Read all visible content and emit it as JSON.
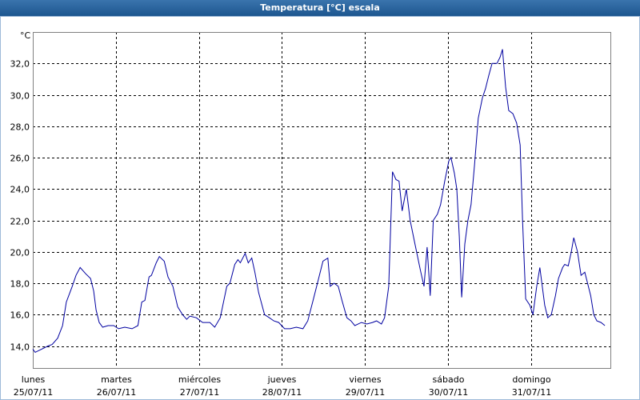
{
  "chart_data": {
    "type": "line",
    "title": "Temperatura [°C] escala",
    "y_unit": "°C",
    "x": [
      0,
      0.7,
      4.4,
      5.6,
      7.2,
      8.6,
      9.7,
      11.4,
      12.5,
      13.7,
      15.3,
      16.7,
      17.6,
      18.3,
      19.2,
      20.2,
      21.8,
      23.4,
      24.8,
      26.6,
      28.7,
      30.4,
      31.5,
      32.4,
      33.6,
      34.3,
      35.7,
      36.6,
      38.0,
      39.1,
      40.5,
      41.9,
      43.3,
      44.5,
      45.4,
      47.3,
      49.1,
      51.2,
      52.6,
      54.2,
      56.1,
      57.0,
      58.4,
      59.3,
      60.0,
      61.4,
      62.3,
      63.3,
      64.2,
      65.3,
      67.0,
      68.4,
      69.7,
      71.1,
      72.8,
      74.4,
      76.2,
      78.1,
      79.5,
      80.9,
      82.3,
      83.9,
      85.3,
      86.0,
      87.1,
      88.3,
      89.4,
      90.8,
      92.0,
      93.1,
      95.0,
      96.6,
      98.2,
      99.4,
      100.8,
      101.7,
      102.9,
      104.0,
      105.0,
      105.9,
      106.8,
      108.0,
      109.1,
      110.5,
      112.1,
      113.1,
      114.0,
      114.9,
      115.8,
      117.0,
      117.9,
      119.1,
      120.3,
      120.9,
      121.9,
      122.6,
      123.3,
      124.0,
      124.9,
      125.8,
      126.7,
      127.7,
      128.8,
      130.0,
      130.9,
      131.8,
      132.8,
      134.2,
      135.1,
      135.8,
      136.7,
      137.6,
      138.8,
      139.9,
      140.9,
      141.6,
      142.5,
      143.7,
      144.6,
      145.7,
      146.6,
      148.0,
      148.9,
      149.9,
      151.1,
      152.0,
      153.2,
      153.8,
      154.8,
      155.7,
      156.4,
      157.5,
      158.5,
      159.6,
      161.3,
      162.2,
      163.1,
      164.3,
      165.4
    ],
    "series": [
      {
        "name": "Temperatura",
        "color": "#0000a0",
        "values": [
          13.8,
          13.6,
          14.0,
          14.1,
          14.5,
          15.3,
          16.8,
          17.8,
          18.5,
          19.0,
          18.6,
          18.3,
          17.5,
          16.3,
          15.5,
          15.2,
          15.3,
          15.3,
          15.1,
          15.2,
          15.1,
          15.3,
          16.8,
          16.9,
          18.4,
          18.5,
          19.3,
          19.7,
          19.4,
          18.4,
          17.8,
          16.5,
          16.0,
          15.7,
          15.9,
          15.8,
          15.5,
          15.5,
          15.2,
          15.8,
          17.8,
          18.0,
          19.2,
          19.5,
          19.3,
          19.9,
          19.3,
          19.6,
          18.7,
          17.4,
          16.0,
          15.8,
          15.6,
          15.5,
          15.1,
          15.1,
          15.2,
          15.1,
          15.6,
          16.8,
          18.0,
          19.4,
          19.6,
          17.8,
          18.0,
          17.8,
          16.9,
          15.8,
          15.6,
          15.3,
          15.5,
          15.4,
          15.5,
          15.6,
          15.4,
          15.8,
          17.8,
          25.1,
          24.6,
          24.5,
          22.6,
          24.0,
          22.0,
          20.5,
          18.8,
          17.8,
          20.3,
          17.2,
          22.0,
          22.4,
          23.0,
          24.5,
          25.8,
          26.0,
          25.0,
          24.0,
          21.0,
          17.1,
          20.5,
          22.0,
          23.0,
          25.5,
          28.5,
          29.8,
          30.4,
          31.2,
          32.0,
          32.0,
          32.4,
          32.9,
          30.5,
          29.0,
          28.8,
          28.2,
          26.8,
          22.0,
          17.0,
          16.6,
          16.0,
          17.8,
          19.0,
          16.6,
          15.8,
          16.0,
          17.2,
          18.3,
          19.0,
          19.2,
          19.1,
          20.0,
          20.9,
          20.0,
          18.5,
          18.7,
          17.2,
          16.0,
          15.6,
          15.5,
          15.3
        ]
      }
    ],
    "xlim": [
      0,
      167
    ],
    "xticks": [
      {
        "value": 0,
        "label": "lunes",
        "date": "25/07/11"
      },
      {
        "value": 24,
        "label": "martes",
        "date": "26/07/11"
      },
      {
        "value": 48,
        "label": "miércoles",
        "date": "27/07/11"
      },
      {
        "value": 72,
        "label": "jueves",
        "date": "28/07/11"
      },
      {
        "value": 96,
        "label": "viernes",
        "date": "29/07/11"
      },
      {
        "value": 120,
        "label": "sábado",
        "date": "30/07/11"
      },
      {
        "value": 144,
        "label": "domingo",
        "date": "31/07/11"
      }
    ],
    "ylim": [
      12.6,
      34
    ],
    "yticks": [
      {
        "value": 14,
        "label": "14,0"
      },
      {
        "value": 16,
        "label": "16,0"
      },
      {
        "value": 18,
        "label": "18,0"
      },
      {
        "value": 20,
        "label": "20,0"
      },
      {
        "value": 22,
        "label": "22,0"
      },
      {
        "value": 24,
        "label": "24,0"
      },
      {
        "value": 26,
        "label": "26,0"
      },
      {
        "value": 28,
        "label": "28,0"
      },
      {
        "value": 30,
        "label": "30,0"
      },
      {
        "value": 32,
        "label": "32,0"
      }
    ],
    "grid": true
  }
}
